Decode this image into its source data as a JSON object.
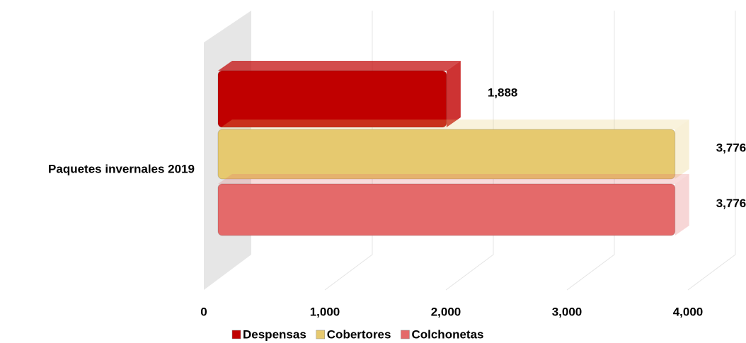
{
  "chart_data": {
    "type": "bar",
    "orientation": "horizontal",
    "categories": [
      "Paquetes invernales 2019"
    ],
    "series": [
      {
        "name": "Despensas",
        "color": "#c00000",
        "values": [
          1888
        ],
        "value_labels": [
          "1,888"
        ]
      },
      {
        "name": "Cobertores",
        "color": "#e6c96f",
        "values": [
          3776
        ],
        "value_labels": [
          "3,776"
        ]
      },
      {
        "name": "Colchonetas",
        "color": "#e46a6a",
        "values": [
          3776
        ],
        "value_labels": [
          "3,776"
        ]
      }
    ],
    "xlim": [
      0,
      4000
    ],
    "xticks": [
      0,
      {
        "value": 1000,
        "label": "1,000"
      },
      {
        "value": 2000,
        "label": "2,000"
      },
      {
        "value": 3000,
        "label": "3,000"
      },
      {
        "value": 4000,
        "label": "4,000"
      }
    ],
    "grid": true,
    "legend": "bottom"
  }
}
